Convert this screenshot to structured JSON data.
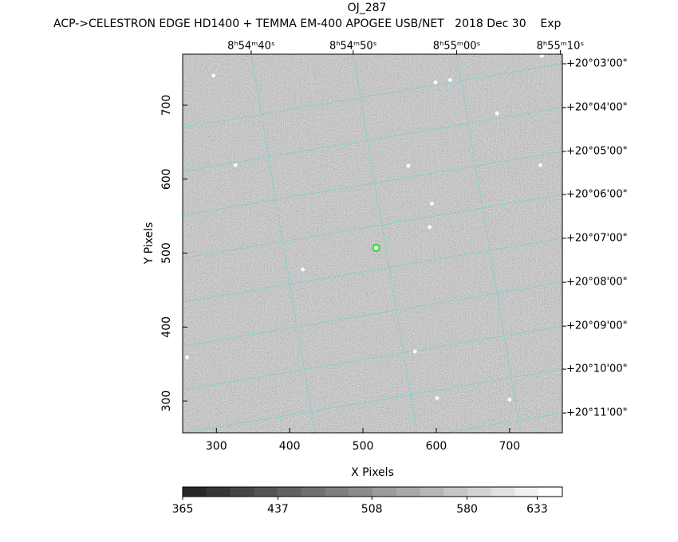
{
  "chart_data": {
    "type": "image",
    "title": "OJ_287",
    "subtitle": "ACP->CELESTRON EDGE HD1400 + TEMMA EM-400 APOGEE USB/NET   2018 Dec 30    Exp",
    "x_label": "X Pixels",
    "y_label": "Y Pixels",
    "xlim": [
      254,
      772
    ],
    "ylim": [
      257,
      769
    ],
    "xticks": [
      300,
      400,
      500,
      600,
      700
    ],
    "yticks": [
      300,
      400,
      500,
      600,
      700
    ],
    "top_ticks": [
      {
        "value": 347.5,
        "label": "8ʰ54ᵐ40ˢ"
      },
      {
        "value": 486.6,
        "label": "8ʰ54ᵐ50ˢ"
      },
      {
        "value": 627.9,
        "label": "8ʰ55ᵐ00ˢ"
      },
      {
        "value": 769.2,
        "label": "8ʰ55ᵐ10ˢ"
      }
    ],
    "right_ticks": [
      {
        "value": 756.1,
        "label": "+20°03'00\""
      },
      {
        "value": 696.8,
        "label": "+20°04'00\""
      },
      {
        "value": 637.5,
        "label": "+20°05'00\""
      },
      {
        "value": 579.2,
        "label": "+20°06'00\""
      },
      {
        "value": 520.1,
        "label": "+20°07'00\""
      },
      {
        "value": 460.6,
        "label": "+20°08'00\""
      },
      {
        "value": 401.3,
        "label": "+20°09'00\""
      },
      {
        "value": 343.1,
        "label": "+20°10'00\""
      },
      {
        "value": 283.8,
        "label": "+20°11'00\""
      }
    ],
    "grid_color": "#5fd3d3",
    "sources": {
      "x": [
        619,
        562,
        594,
        591,
        326,
        742,
        744,
        683,
        601,
        700,
        418,
        296,
        599,
        571,
        260
      ],
      "y": [
        734,
        618,
        567,
        535,
        619,
        619,
        767,
        689,
        304,
        302,
        478,
        740,
        731,
        367,
        359
      ]
    },
    "target": {
      "x": 518,
      "y": 507,
      "color": "#22dd22"
    },
    "colorbar": {
      "lim": [
        365,
        652
      ],
      "ticks": [
        365,
        437,
        508,
        580,
        633
      ]
    }
  }
}
